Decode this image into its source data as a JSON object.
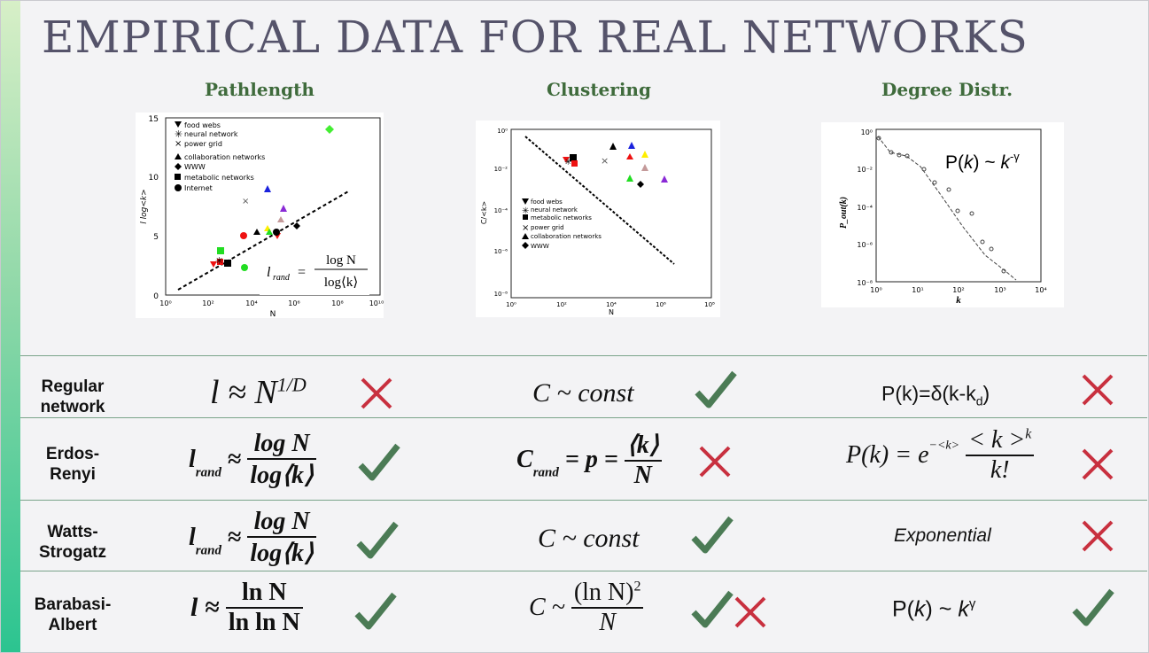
{
  "title": "EMPIRICAL DATA FOR REAL NETWORKS",
  "columns": {
    "pathlength": "Pathlength",
    "clustering": "Clustering",
    "degree": "Degree Distr."
  },
  "plots": {
    "pathlength": {
      "ylabel": "l log<k>",
      "xlabel": "N",
      "yticks": [
        "0",
        "5",
        "10",
        "15"
      ],
      "xticks": [
        "10⁰",
        "10²",
        "10⁴",
        "10⁶",
        "10⁸",
        "10¹⁰"
      ],
      "legend": [
        "food webs",
        "neural network",
        "power grid",
        "collaboration networks",
        "WWW",
        "metabolic networks",
        "Internet"
      ],
      "formula_lhs": "l",
      "formula_sub": "rand",
      "formula_num": "log N",
      "formula_den": "log⟨k⟩"
    },
    "clustering": {
      "ylabel": "C/<k>",
      "xlabel": "N",
      "yticks": [
        "10⁰",
        "10⁻²",
        "10⁻⁴",
        "10⁻⁶",
        "10⁻⁸"
      ],
      "xticks": [
        "10⁰",
        "10²",
        "10⁴",
        "10⁶",
        "10⁸"
      ],
      "legend": [
        "food webs",
        "neural network",
        "metabolic networks",
        "power grid",
        "collaboration networks",
        "WWW"
      ]
    },
    "degree": {
      "ylabel": "P_out(k)",
      "xlabel": "k",
      "yticks": [
        "10⁰",
        "10⁻²",
        "10⁻⁴",
        "10⁻⁶",
        "10⁻⁸"
      ],
      "xticks": [
        "10⁰",
        "10¹",
        "10²",
        "10³",
        "10⁴"
      ],
      "formula_p": "P(",
      "formula_k": "k",
      "formula_close": ")  ~ ",
      "formula_base": "k",
      "formula_exp": "-γ"
    }
  },
  "rows": [
    {
      "label_line1": "Regular",
      "label_line2": "network",
      "path_l": "l",
      "path_approx": " ≈ N",
      "path_exp": "1/D",
      "path_mark": "cross",
      "clust_text": "C ~ const",
      "clust_mark": "check",
      "deg_text": "P(k)=δ(k-k",
      "deg_sub": "d",
      "deg_close": ")",
      "deg_mark": "cross"
    },
    {
      "label_line1": "Erdos-",
      "label_line2": "Renyi",
      "path_l": "l",
      "path_sub": "rand",
      "path_approx": "≈",
      "path_num": "log N",
      "path_den": "log⟨k⟩",
      "path_mark": "check",
      "clust_c": "C",
      "clust_sub": "rand",
      "clust_eq": "= p =",
      "clust_num": "⟨k⟩",
      "clust_den": "N",
      "clust_mark": "cross",
      "deg_lhs": "P(k) = e",
      "deg_exp": "−<k>",
      "deg_num": "< k >",
      "deg_num_exp": "k",
      "deg_den": "k!",
      "deg_mark": "cross"
    },
    {
      "label_line1": "Watts-",
      "label_line2": "Strogatz",
      "path_l": "l",
      "path_sub": "rand",
      "path_approx": "≈",
      "path_num": "log N",
      "path_den": "log⟨k⟩",
      "path_mark": "check",
      "clust_text": "C ~ const",
      "clust_mark": "check",
      "deg_text": "Exponential",
      "deg_mark": "cross"
    },
    {
      "label_line1": "Barabasi-",
      "label_line2": "Albert",
      "path_l": "l ≈",
      "path_num": "ln N",
      "path_den": "ln ln N",
      "path_mark": "check",
      "clust_lhs": "C ~",
      "clust_num": "(ln N)",
      "clust_num_exp": "2",
      "clust_den": "N",
      "clust_mark": "check-cross",
      "deg_p": "P(",
      "deg_k": "k",
      "deg_close": ")  ~ ",
      "deg_base": "k",
      "deg_exp": "γ",
      "deg_mark": "check"
    }
  ],
  "colors": {
    "title": "#55536a",
    "column_heading": "#3f6b3c",
    "check": "#4b7b55",
    "cross": "#c8303f",
    "separator": "#7aa38a"
  }
}
